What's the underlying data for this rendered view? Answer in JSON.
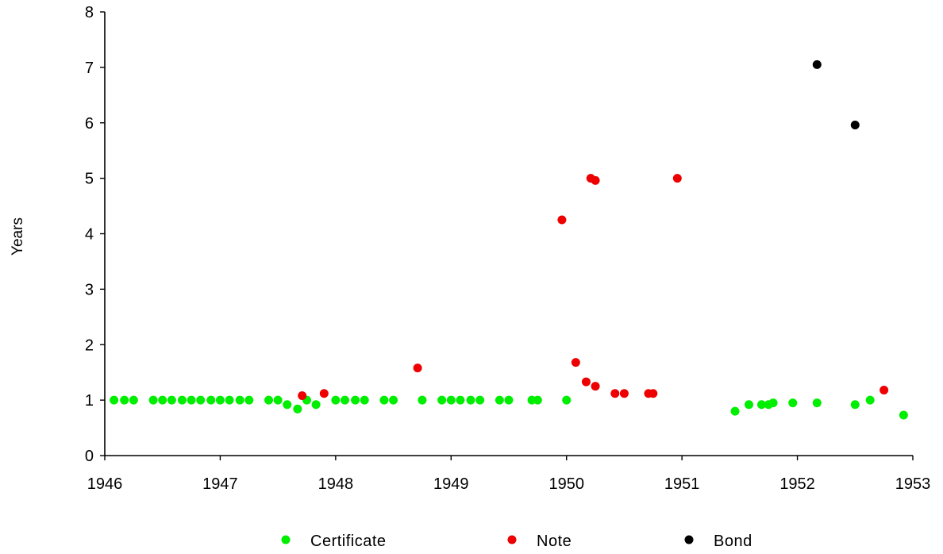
{
  "chart_data": {
    "type": "scatter",
    "title": "",
    "xlabel": "",
    "ylabel": "Years",
    "xlim": [
      1946,
      1953
    ],
    "ylim": [
      0,
      8
    ],
    "xticks": [
      1946,
      1947,
      1948,
      1949,
      1950,
      1951,
      1952,
      1953
    ],
    "xtick_labels": [
      "1946",
      "1947",
      "1948",
      "1949",
      "1950",
      "1951",
      "1952",
      "1953"
    ],
    "yticks": [
      0,
      1,
      2,
      3,
      4,
      5,
      6,
      7,
      8
    ],
    "ytick_labels": [
      "0",
      "1",
      "2",
      "3",
      "4",
      "5",
      "6",
      "7",
      "8"
    ],
    "grid": false,
    "legend_position": "bottom",
    "series": [
      {
        "name": "Certificate",
        "color": "#00ee00",
        "points": [
          [
            1946.08,
            1.0
          ],
          [
            1946.17,
            1.0
          ],
          [
            1946.25,
            1.0
          ],
          [
            1946.42,
            1.0
          ],
          [
            1946.5,
            1.0
          ],
          [
            1946.58,
            1.0
          ],
          [
            1946.67,
            1.0
          ],
          [
            1946.75,
            1.0
          ],
          [
            1946.83,
            1.0
          ],
          [
            1946.92,
            1.0
          ],
          [
            1947.0,
            1.0
          ],
          [
            1947.08,
            1.0
          ],
          [
            1947.17,
            1.0
          ],
          [
            1947.25,
            1.0
          ],
          [
            1947.42,
            1.0
          ],
          [
            1947.5,
            1.0
          ],
          [
            1947.58,
            0.92
          ],
          [
            1947.67,
            0.84
          ],
          [
            1947.75,
            1.0
          ],
          [
            1947.83,
            0.92
          ],
          [
            1948.0,
            1.0
          ],
          [
            1948.08,
            1.0
          ],
          [
            1948.17,
            1.0
          ],
          [
            1948.25,
            1.0
          ],
          [
            1948.42,
            1.0
          ],
          [
            1948.5,
            1.0
          ],
          [
            1948.75,
            1.0
          ],
          [
            1948.92,
            1.0
          ],
          [
            1949.0,
            1.0
          ],
          [
            1949.08,
            1.0
          ],
          [
            1949.17,
            1.0
          ],
          [
            1949.25,
            1.0
          ],
          [
            1949.42,
            1.0
          ],
          [
            1949.5,
            1.0
          ],
          [
            1949.7,
            1.0
          ],
          [
            1949.75,
            1.0
          ],
          [
            1950.0,
            1.0
          ],
          [
            1951.46,
            0.8
          ],
          [
            1951.58,
            0.92
          ],
          [
            1951.69,
            0.92
          ],
          [
            1951.75,
            0.92
          ],
          [
            1951.79,
            0.95
          ],
          [
            1951.96,
            0.95
          ],
          [
            1952.17,
            0.95
          ],
          [
            1952.5,
            0.92
          ],
          [
            1952.63,
            1.0
          ],
          [
            1952.92,
            0.73
          ]
        ]
      },
      {
        "name": "Note",
        "color": "#ee0000",
        "points": [
          [
            1947.71,
            1.08
          ],
          [
            1947.9,
            1.12
          ],
          [
            1948.71,
            1.58
          ],
          [
            1949.96,
            4.25
          ],
          [
            1950.08,
            1.68
          ],
          [
            1950.17,
            1.33
          ],
          [
            1950.21,
            5.0
          ],
          [
            1950.25,
            4.96
          ],
          [
            1950.25,
            1.25
          ],
          [
            1950.42,
            1.12
          ],
          [
            1950.5,
            1.12
          ],
          [
            1950.71,
            1.12
          ],
          [
            1950.75,
            1.12
          ],
          [
            1950.96,
            5.0
          ],
          [
            1952.75,
            1.18
          ]
        ]
      },
      {
        "name": "Bond",
        "color": "#000000",
        "points": [
          [
            1952.17,
            7.05
          ],
          [
            1952.5,
            5.96
          ]
        ]
      }
    ]
  }
}
